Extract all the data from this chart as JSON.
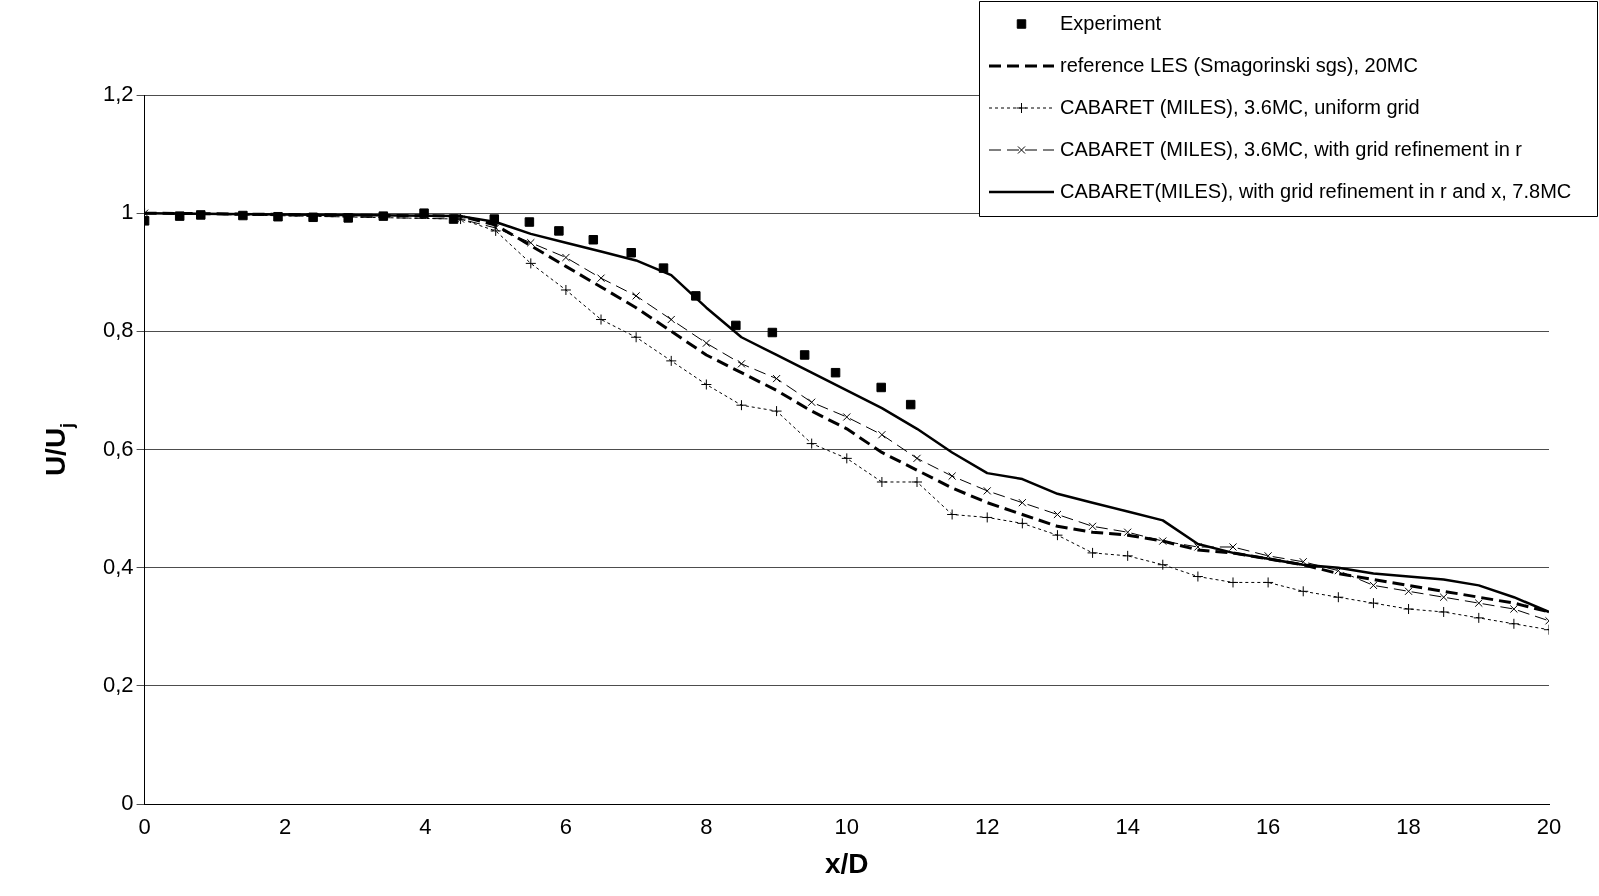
{
  "chart_data": {
    "type": "line",
    "xlabel": "x/D",
    "ylabel": "U/U$_{j}$",
    "xlim": [
      0,
      20
    ],
    "xticks": [
      0,
      2,
      4,
      6,
      8,
      10,
      12,
      14,
      16,
      18,
      20
    ],
    "ylim": [
      0,
      1.2
    ],
    "yticks": [
      0,
      {
        "value": 0.2,
        "label": "0,2"
      },
      {
        "value": 0.4,
        "label": "0,4"
      },
      {
        "value": 0.6,
        "label": "0,6"
      },
      {
        "value": 0.8,
        "label": "0,8"
      },
      1,
      {
        "value": 1.2,
        "label": "1,2"
      }
    ],
    "grid": "y",
    "legend": "top right",
    "series": [
      {
        "name": "Experiment",
        "type": "scatter",
        "marker": "square",
        "color": "#000000",
        "x": [
          0,
          0.5,
          0.8,
          1.4,
          1.9,
          2.4,
          2.9,
          3.4,
          3.98,
          4.4,
          4.98,
          5.48,
          5.9,
          6.39,
          6.93,
          7.39,
          7.85,
          8.42,
          8.94,
          9.4,
          9.84,
          10.49,
          10.91
        ],
        "values": [
          0.987,
          0.995,
          0.997,
          0.996,
          0.994,
          0.993,
          0.992,
          0.995,
          1.0,
          0.99,
          0.99,
          0.985,
          0.97,
          0.955,
          0.933,
          0.907,
          0.86,
          0.81,
          0.798,
          0.76,
          0.73,
          0.705,
          0.676
        ]
      },
      {
        "name": "reference LES (Smagorinski sgs), 20MC",
        "type": "line",
        "marker": "none",
        "line_style": "dashed",
        "color": "#000000",
        "x": [
          0,
          4.5,
          5,
          5.5,
          6,
          6.5,
          7,
          7.5,
          8,
          8.5,
          9,
          9.5,
          10,
          10.5,
          11,
          11.5,
          12,
          12.5,
          13,
          13.5,
          14,
          14.5,
          15,
          15.5,
          16,
          16.5,
          17,
          17.5,
          18,
          18.5,
          19,
          19.5,
          20
        ],
        "values": [
          1.0,
          0.995,
          0.98,
          0.945,
          0.91,
          0.875,
          0.84,
          0.8,
          0.76,
          0.73,
          0.7,
          0.665,
          0.635,
          0.595,
          0.565,
          0.535,
          0.51,
          0.49,
          0.47,
          0.46,
          0.455,
          0.445,
          0.43,
          0.425,
          0.415,
          0.405,
          0.39,
          0.38,
          0.37,
          0.36,
          0.35,
          0.34,
          0.325
        ]
      },
      {
        "name": "CABARET (MILES), 3.6MC, uniform grid",
        "type": "line",
        "marker": "plus",
        "line_style": "dotted",
        "color": "#000000",
        "x": [
          0,
          4.5,
          5,
          5.5,
          6,
          6.5,
          7,
          7.5,
          8,
          8.5,
          9,
          9.5,
          10,
          10.5,
          11,
          11.5,
          12,
          12.5,
          13,
          13.5,
          14,
          14.5,
          15,
          15.5,
          16,
          16.5,
          17,
          17.5,
          18,
          18.5,
          19,
          19.5,
          20
        ],
        "values": [
          1.0,
          0.99,
          0.97,
          0.915,
          0.87,
          0.82,
          0.79,
          0.75,
          0.71,
          0.675,
          0.665,
          0.61,
          0.585,
          0.545,
          0.545,
          0.49,
          0.485,
          0.475,
          0.455,
          0.425,
          0.42,
          0.405,
          0.385,
          0.375,
          0.375,
          0.36,
          0.35,
          0.34,
          0.33,
          0.325,
          0.315,
          0.305,
          0.295
        ]
      },
      {
        "name": "CABARET (MILES), 3.6MC, with grid refinement in r",
        "type": "line",
        "marker": "cross",
        "line_style": "dashed",
        "color": "#000000",
        "x": [
          0,
          4.5,
          5,
          5.5,
          6,
          6.5,
          7,
          7.5,
          8,
          8.5,
          9,
          9.5,
          10,
          10.5,
          11,
          11.5,
          12,
          12.5,
          13,
          13.5,
          14,
          14.5,
          15,
          15.5,
          16,
          16.5,
          17,
          17.5,
          18,
          18.5,
          19,
          19.5,
          20
        ],
        "values": [
          1.0,
          0.99,
          0.975,
          0.95,
          0.925,
          0.89,
          0.86,
          0.82,
          0.78,
          0.745,
          0.72,
          0.68,
          0.655,
          0.625,
          0.585,
          0.555,
          0.53,
          0.51,
          0.49,
          0.47,
          0.46,
          0.445,
          0.435,
          0.435,
          0.42,
          0.41,
          0.395,
          0.37,
          0.36,
          0.35,
          0.34,
          0.33,
          0.31
        ]
      },
      {
        "name": "CABARET(MILES), with grid refinement in r and x, 7.8MC",
        "type": "line",
        "marker": "none",
        "line_style": "solid",
        "color": "#000000",
        "x": [
          0,
          4.5,
          5,
          5.5,
          6,
          6.5,
          7,
          7.5,
          8,
          8.5,
          9,
          9.5,
          10,
          10.5,
          11,
          11.5,
          12,
          12.5,
          13,
          13.5,
          14,
          14.5,
          15,
          15.5,
          16,
          16.5,
          17,
          17.5,
          18,
          18.5,
          19,
          19.5,
          20
        ],
        "values": [
          1.0,
          0.995,
          0.985,
          0.965,
          0.95,
          0.935,
          0.92,
          0.895,
          0.84,
          0.79,
          0.76,
          0.73,
          0.7,
          0.67,
          0.635,
          0.595,
          0.56,
          0.55,
          0.525,
          0.51,
          0.495,
          0.48,
          0.44,
          0.425,
          0.415,
          0.405,
          0.4,
          0.39,
          0.385,
          0.38,
          0.37,
          0.35,
          0.325
        ]
      }
    ]
  }
}
